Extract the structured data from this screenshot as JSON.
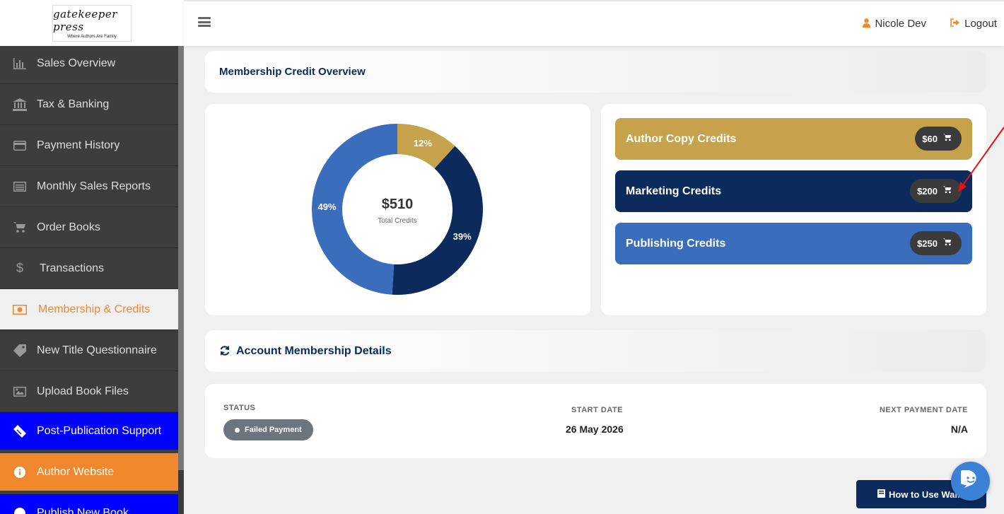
{
  "logo": {
    "name": "gatekeeper press",
    "tagline": "Where Authors Are Family"
  },
  "sidebar": {
    "items": [
      {
        "label": "Sales Overview",
        "icon": "bar-chart-icon"
      },
      {
        "label": "Tax & Banking",
        "icon": "bank-icon"
      },
      {
        "label": "Payment History",
        "icon": "credit-card-icon"
      },
      {
        "label": "Monthly Sales Reports",
        "icon": "list-icon"
      },
      {
        "label": "Order Books",
        "icon": "cart-icon"
      },
      {
        "label": "Transactions",
        "icon": "dollar-icon"
      },
      {
        "label": "Membership & Credits",
        "icon": "money-icon",
        "active": true
      },
      {
        "label": "New Title Questionnaire",
        "icon": "tag-icon"
      },
      {
        "label": "Upload Book Files",
        "icon": "image-icon"
      },
      {
        "label": "Post-Publication Support",
        "icon": "ticket-icon"
      },
      {
        "label": "Author Website",
        "icon": "info-icon"
      },
      {
        "label": "Publish New Book",
        "icon": "book-icon"
      }
    ]
  },
  "topbar": {
    "user": "Nicole Dev",
    "logout": "Logout"
  },
  "overview": {
    "title": "Membership Credit Overview"
  },
  "chart_data": {
    "type": "pie",
    "center_value": "$510",
    "center_label": "Total Credits",
    "categories": [
      "Author Copy Credits",
      "Marketing Credits",
      "Publishing Credits"
    ],
    "values": [
      60,
      200,
      250
    ],
    "labels": [
      "12%",
      "39%",
      "49%"
    ],
    "colors": [
      "#c7a24d",
      "#0d2a5c",
      "#3a6ebd"
    ]
  },
  "credits": [
    {
      "label": "Author Copy Credits",
      "amount": "$60",
      "color": "#c7a24d"
    },
    {
      "label": "Marketing Credits",
      "amount": "$200",
      "color": "#0d2a5c"
    },
    {
      "label": "Publishing Credits",
      "amount": "$250",
      "color": "#3a6ebd"
    }
  ],
  "account": {
    "title": "Account Membership Details",
    "status_label": "STATUS",
    "status_value": "Failed Payment",
    "start_label": "START DATE",
    "start_value": "26 May 2026",
    "next_label": "NEXT PAYMENT DATE",
    "next_value": "N/A"
  },
  "walkthrough": {
    "label": "How to Use Walk"
  }
}
